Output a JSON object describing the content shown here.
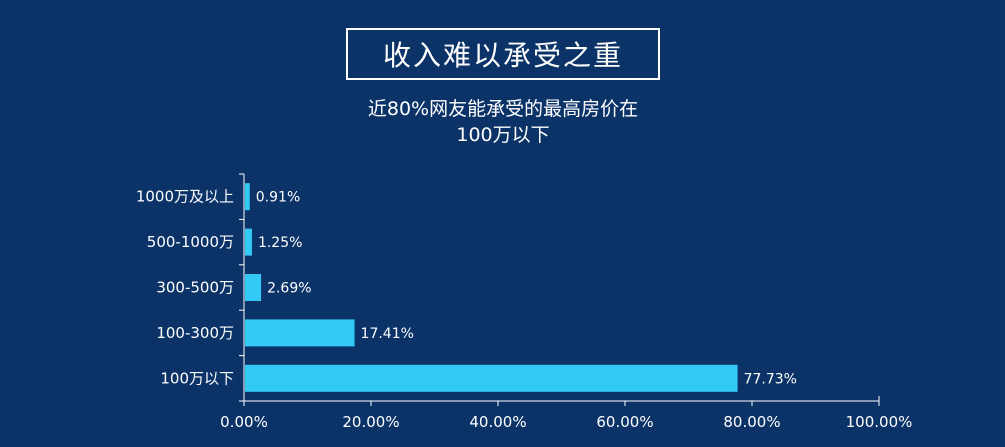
{
  "chart_data": {
    "type": "bar",
    "orientation": "horizontal",
    "title": "收入难以承受之重",
    "subtitle_lines": [
      "近80%网友能承受的最高房价在",
      "100万以下"
    ],
    "categories": [
      "1000万及以上",
      "500-1000万",
      "300-500万",
      "100-300万",
      "100万以下"
    ],
    "values": [
      0.91,
      1.25,
      2.69,
      17.41,
      77.73
    ],
    "value_labels": [
      "0.91%",
      "1.25%",
      "2.69%",
      "17.41%",
      "77.73%"
    ],
    "xlim": [
      0,
      100
    ],
    "xticks": [
      "0.00%",
      "20.00%",
      "40.00%",
      "60.00%",
      "80.00%",
      "100.00%"
    ],
    "grid": false,
    "legend": "none",
    "colors": {
      "background": "#0b3368",
      "bar": "#33c9f5",
      "text": "#ffffff",
      "axis": "#ffffff"
    }
  }
}
